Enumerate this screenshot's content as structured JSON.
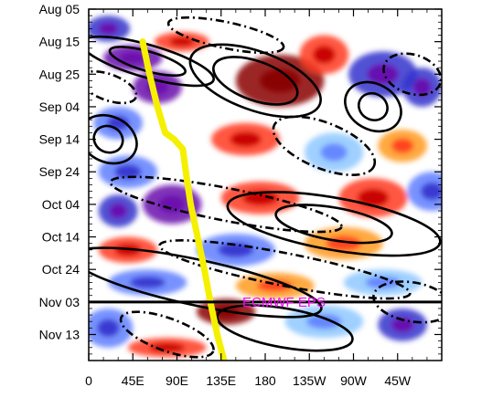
{
  "chart_data": {
    "type": "heatmap",
    "title": "",
    "xlabel": "",
    "ylabel": "",
    "x_axis": {
      "type": "longitude",
      "ticks": [
        {
          "lon": 0,
          "label": "0"
        },
        {
          "lon": 45,
          "label": "45E"
        },
        {
          "lon": 90,
          "label": "90E"
        },
        {
          "lon": 135,
          "label": "135E"
        },
        {
          "lon": 180,
          "label": "180"
        },
        {
          "lon": 225,
          "label": "135W"
        },
        {
          "lon": 270,
          "label": "90W"
        },
        {
          "lon": 315,
          "label": "45W"
        }
      ],
      "xlim": [
        0,
        360
      ]
    },
    "y_axis": {
      "type": "time",
      "direction": "downward",
      "ticks": [
        {
          "day": 0,
          "label": "Aug 05"
        },
        {
          "day": 10,
          "label": "Aug 15"
        },
        {
          "day": 20,
          "label": "Aug 25"
        },
        {
          "day": 30,
          "label": "Sep 04"
        },
        {
          "day": 40,
          "label": "Sep 14"
        },
        {
          "day": 50,
          "label": "Sep 24"
        },
        {
          "day": 60,
          "label": "Oct 04"
        },
        {
          "day": 70,
          "label": "Oct 14"
        },
        {
          "day": 80,
          "label": "Oct 24"
        },
        {
          "day": 90,
          "label": "Nov 03"
        },
        {
          "day": 100,
          "label": "Nov 13"
        }
      ],
      "ylim": [
        0,
        108
      ]
    },
    "forecast_start": {
      "day": 90,
      "label": "ECMWF EPS",
      "label_color": "#ff00ff",
      "line_color": "#000000"
    },
    "series": [
      {
        "style": "thick-yellow-line",
        "color": "#f5f000",
        "points": [
          {
            "lon": 55,
            "day": 10
          },
          {
            "lon": 62,
            "day": 20
          },
          {
            "lon": 70,
            "day": 30
          },
          {
            "lon": 78,
            "day": 38
          },
          {
            "lon": 87,
            "day": 40
          },
          {
            "lon": 96,
            "day": 43
          },
          {
            "lon": 100,
            "day": 52
          },
          {
            "lon": 104,
            "day": 60
          },
          {
            "lon": 111,
            "day": 70
          },
          {
            "lon": 118,
            "day": 80
          },
          {
            "lon": 124,
            "day": 90
          },
          {
            "lon": 131,
            "day": 100
          },
          {
            "lon": 138,
            "day": 108
          }
        ]
      }
    ],
    "anomaly_color_scale": [
      "#6a0dad",
      "#3333cc",
      "#5f7fff",
      "#8ec8ff",
      "#ffffff",
      "#ffe24d",
      "#ff9a1f",
      "#ff3b1f",
      "#c30000",
      "#8a0000"
    ],
    "anomaly_features": [
      {
        "lon": 20,
        "day": 6,
        "a": 22,
        "b": 4,
        "value": -0.7
      },
      {
        "lon": 45,
        "day": 15,
        "a": 30,
        "b": 4,
        "value": -0.9
      },
      {
        "lon": 70,
        "day": 24,
        "a": 25,
        "b": 5,
        "value": -1.0
      },
      {
        "lon": 30,
        "day": 35,
        "a": 25,
        "b": 5,
        "value": -0.6
      },
      {
        "lon": 95,
        "day": 10,
        "a": 28,
        "b": 3,
        "value": 0.6
      },
      {
        "lon": 195,
        "day": 22,
        "a": 45,
        "b": 8,
        "value": 1.0
      },
      {
        "lon": 240,
        "day": 14,
        "a": 25,
        "b": 6,
        "value": 0.6
      },
      {
        "lon": 300,
        "day": 20,
        "a": 35,
        "b": 7,
        "value": -0.7
      },
      {
        "lon": 340,
        "day": 24,
        "a": 20,
        "b": 6,
        "value": -0.8
      },
      {
        "lon": 160,
        "day": 40,
        "a": 35,
        "b": 5,
        "value": 0.5
      },
      {
        "lon": 250,
        "day": 44,
        "a": 30,
        "b": 6,
        "value": -0.4
      },
      {
        "lon": 320,
        "day": 42,
        "a": 25,
        "b": 5,
        "value": 0.4
      },
      {
        "lon": 40,
        "day": 50,
        "a": 30,
        "b": 5,
        "value": -0.5
      },
      {
        "lon": 85,
        "day": 60,
        "a": 30,
        "b": 6,
        "value": -1.0
      },
      {
        "lon": 30,
        "day": 62,
        "a": 20,
        "b": 5,
        "value": -0.7
      },
      {
        "lon": 175,
        "day": 58,
        "a": 40,
        "b": 5,
        "value": 0.6
      },
      {
        "lon": 290,
        "day": 58,
        "a": 35,
        "b": 6,
        "value": 0.5
      },
      {
        "lon": 350,
        "day": 56,
        "a": 25,
        "b": 6,
        "value": -0.5
      },
      {
        "lon": 40,
        "day": 74,
        "a": 30,
        "b": 4,
        "value": 0.6
      },
      {
        "lon": 150,
        "day": 74,
        "a": 40,
        "b": 5,
        "value": -0.5
      },
      {
        "lon": 260,
        "day": 72,
        "a": 40,
        "b": 5,
        "value": 0.4
      },
      {
        "lon": 60,
        "day": 84,
        "a": 40,
        "b": 4,
        "value": -0.5
      },
      {
        "lon": 190,
        "day": 85,
        "a": 40,
        "b": 4,
        "value": 0.4
      },
      {
        "lon": 300,
        "day": 84,
        "a": 40,
        "b": 4,
        "value": -0.4
      },
      {
        "lon": 20,
        "day": 98,
        "a": 25,
        "b": 6,
        "value": -0.5
      },
      {
        "lon": 140,
        "day": 93,
        "a": 30,
        "b": 4,
        "value": 0.9
      },
      {
        "lon": 240,
        "day": 96,
        "a": 40,
        "b": 5,
        "value": -0.4
      },
      {
        "lon": 320,
        "day": 97,
        "a": 25,
        "b": 5,
        "value": -0.8
      },
      {
        "lon": 80,
        "day": 104,
        "a": 40,
        "b": 3,
        "value": 0.6
      }
    ],
    "contours": [
      {
        "dashed": false,
        "cx": 60,
        "cy": 16,
        "rx": 70,
        "ry": 5,
        "rotate": 16
      },
      {
        "dashed": false,
        "cx": 60,
        "cy": 16,
        "rx": 40,
        "ry": 3,
        "rotate": 16
      },
      {
        "dashed": false,
        "cx": 170,
        "cy": 22,
        "rx": 70,
        "ry": 9,
        "rotate": 20
      },
      {
        "dashed": false,
        "cx": 170,
        "cy": 22,
        "rx": 45,
        "ry": 6,
        "rotate": 20
      },
      {
        "dashed": false,
        "cx": 290,
        "cy": 30,
        "rx": 30,
        "ry": 7,
        "rotate": 30
      },
      {
        "dashed": false,
        "cx": 290,
        "cy": 30,
        "rx": 15,
        "ry": 4,
        "rotate": 30
      },
      {
        "dashed": false,
        "cx": 20,
        "cy": 40,
        "rx": 30,
        "ry": 7,
        "rotate": 25
      },
      {
        "dashed": false,
        "cx": 20,
        "cy": 40,
        "rx": 15,
        "ry": 4,
        "rotate": 25
      },
      {
        "dashed": false,
        "cx": 250,
        "cy": 66,
        "rx": 110,
        "ry": 8,
        "rotate": 10
      },
      {
        "dashed": false,
        "cx": 250,
        "cy": 66,
        "rx": 60,
        "ry": 5,
        "rotate": 10
      },
      {
        "dashed": false,
        "cx": 110,
        "cy": 84,
        "rx": 130,
        "ry": 7,
        "rotate": 12
      },
      {
        "dashed": false,
        "cx": 200,
        "cy": 98,
        "rx": 70,
        "ry": 6,
        "rotate": 10
      },
      {
        "dashed": true,
        "cx": 140,
        "cy": 8,
        "rx": 60,
        "ry": 4,
        "rotate": 12
      },
      {
        "dashed": true,
        "cx": 20,
        "cy": 24,
        "rx": 30,
        "ry": 4,
        "rotate": 20
      },
      {
        "dashed": true,
        "cx": 240,
        "cy": 42,
        "rx": 55,
        "ry": 7,
        "rotate": 22
      },
      {
        "dashed": true,
        "cx": 330,
        "cy": 20,
        "rx": 30,
        "ry": 6,
        "rotate": 18
      },
      {
        "dashed": true,
        "cx": 140,
        "cy": 60,
        "rx": 120,
        "ry": 5,
        "rotate": 11
      },
      {
        "dashed": true,
        "cx": 200,
        "cy": 80,
        "rx": 130,
        "ry": 5,
        "rotate": 11
      },
      {
        "dashed": true,
        "cx": 80,
        "cy": 100,
        "rx": 50,
        "ry": 5,
        "rotate": 20
      },
      {
        "dashed": true,
        "cx": 330,
        "cy": 90,
        "rx": 40,
        "ry": 6,
        "rotate": 10
      }
    ]
  }
}
